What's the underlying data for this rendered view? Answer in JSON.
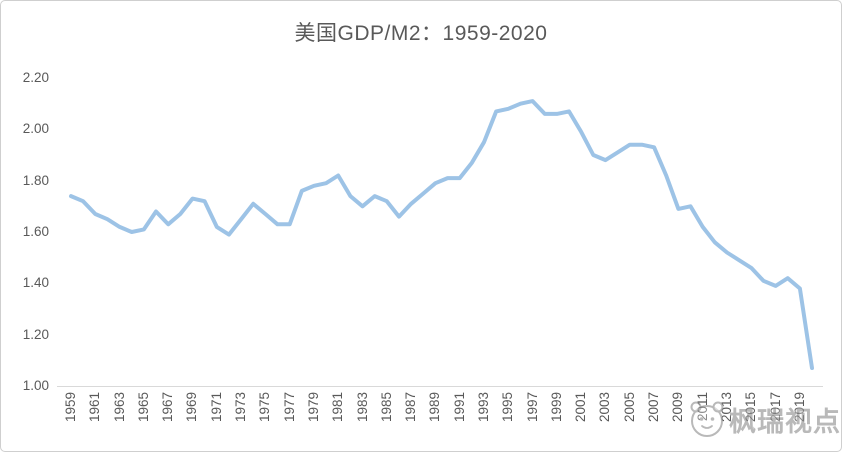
{
  "title": "美国GDP/M2：1959-2020",
  "watermark": {
    "text": "枫瑞视点",
    "icon": "mascot-face-icon"
  },
  "colors": {
    "line": "#9dc3e6",
    "axis": "#d9d9d9",
    "text": "#595959",
    "watermark": "#8f8f8f",
    "background": "#ffffff"
  },
  "chart_data": {
    "type": "line",
    "title": "美国GDP/M2：1959-2020",
    "series_name": "美国GDP/M2",
    "xlabel": "",
    "ylabel": "",
    "grid": false,
    "legend": false,
    "ylim": [
      1.0,
      2.2
    ],
    "y_ticks": [
      "2.20",
      "2.00",
      "1.80",
      "1.60",
      "1.40",
      "1.20",
      "1.00"
    ],
    "x_tick_years": [
      1959,
      1961,
      1963,
      1965,
      1967,
      1969,
      1971,
      1973,
      1975,
      1977,
      1979,
      1981,
      1983,
      1985,
      1987,
      1989,
      1991,
      1993,
      1995,
      1997,
      1999,
      2001,
      2003,
      2005,
      2007,
      2009,
      2011,
      2013,
      2015,
      2017,
      2019
    ],
    "x": [
      1959,
      1960,
      1961,
      1962,
      1963,
      1964,
      1965,
      1966,
      1967,
      1968,
      1969,
      1970,
      1971,
      1972,
      1973,
      1974,
      1975,
      1976,
      1977,
      1978,
      1979,
      1980,
      1981,
      1982,
      1983,
      1984,
      1985,
      1986,
      1987,
      1988,
      1989,
      1990,
      1991,
      1992,
      1993,
      1994,
      1995,
      1996,
      1997,
      1998,
      1999,
      2000,
      2001,
      2002,
      2003,
      2004,
      2005,
      2006,
      2007,
      2008,
      2009,
      2010,
      2011,
      2012,
      2013,
      2014,
      2015,
      2016,
      2017,
      2018,
      2019,
      2020
    ],
    "values": [
      1.74,
      1.72,
      1.67,
      1.65,
      1.62,
      1.6,
      1.61,
      1.68,
      1.63,
      1.67,
      1.73,
      1.72,
      1.62,
      1.59,
      1.65,
      1.71,
      1.67,
      1.63,
      1.63,
      1.76,
      1.78,
      1.79,
      1.82,
      1.74,
      1.7,
      1.74,
      1.72,
      1.66,
      1.71,
      1.75,
      1.79,
      1.81,
      1.81,
      1.87,
      1.95,
      2.07,
      2.08,
      2.1,
      2.11,
      2.06,
      2.06,
      2.07,
      1.99,
      1.9,
      1.88,
      1.91,
      1.94,
      1.94,
      1.93,
      1.82,
      1.69,
      1.7,
      1.62,
      1.56,
      1.52,
      1.49,
      1.46,
      1.41,
      1.39,
      1.42,
      1.38,
      1.07
    ]
  }
}
